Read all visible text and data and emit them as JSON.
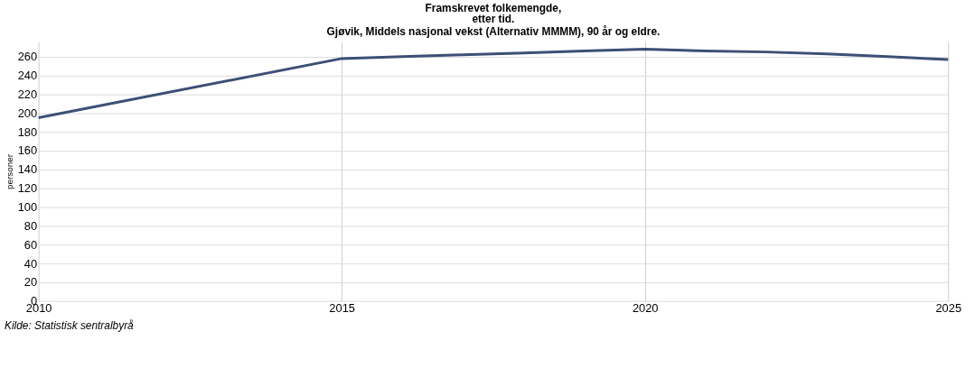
{
  "chart_data": {
    "type": "line",
    "title": "Framskrevet folkemengde,",
    "subtitle": [
      "etter tid.",
      "Gjøvik, Middels nasjonal vekst (Alternativ MMMM), 90 år og eldre."
    ],
    "ylabel": "personer",
    "annotations": [
      "Kilde: Statistisk sentralbyrå"
    ],
    "x": [
      2010,
      2015,
      2016,
      2017,
      2018,
      2019,
      2020,
      2021,
      2022,
      2023,
      2024,
      2025
    ],
    "series": [
      {
        "color": "#3d4f75",
        "values": [
          195,
          258,
          260,
          262,
          264,
          266,
          268,
          266,
          265,
          263,
          260,
          257
        ]
      }
    ],
    "xlim": [
      2010,
      2025
    ],
    "xticks": [
      2010,
      2015,
      2020,
      2025
    ],
    "ylim": [
      0,
      276
    ],
    "yticks": [
      0,
      20,
      40,
      60,
      80,
      100,
      120,
      140,
      160,
      180,
      200,
      220,
      240,
      260
    ],
    "grid": true,
    "legend": false,
    "marker": "none",
    "line_style": "solid"
  }
}
